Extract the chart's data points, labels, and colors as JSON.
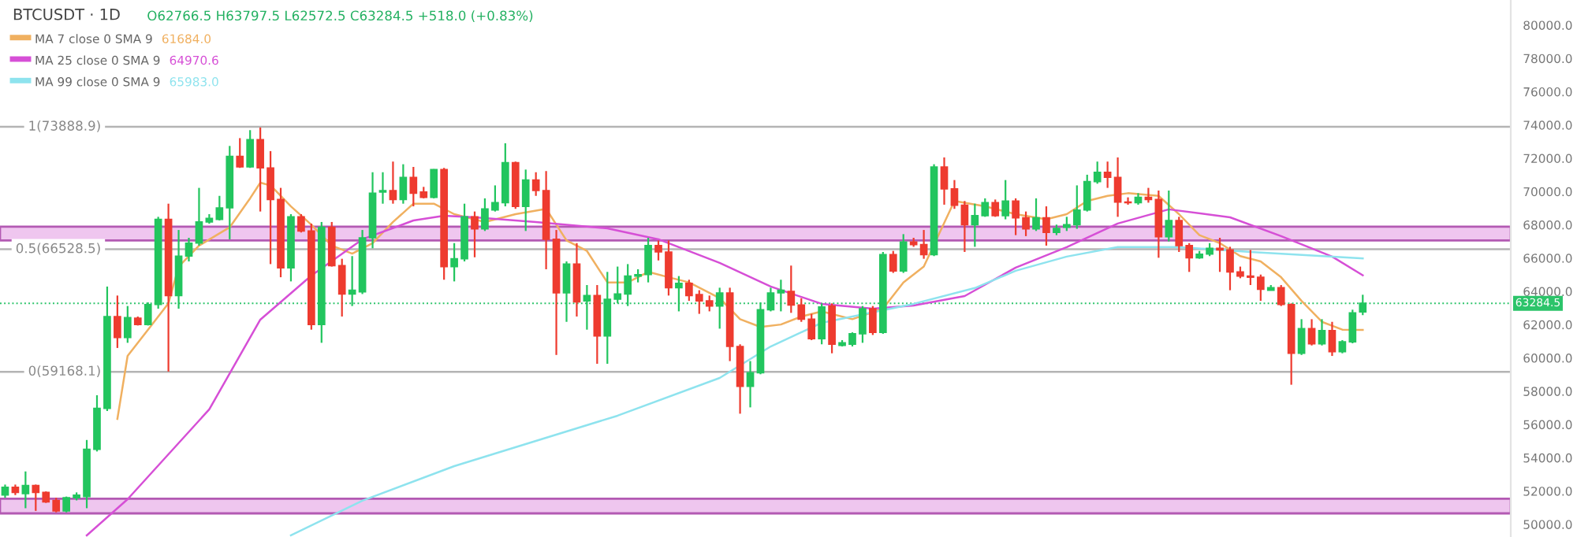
{
  "chart_data": {
    "type": "candlestick",
    "title": "BTCUSDT · 1D",
    "annotations": [
      "O62766.5 H63797.5 L62572.5 C63284.5 +518.0 (+0.83%)",
      "61684.0",
      "64970.6",
      "65983.0"
    ],
    "categories": [
      null,
      null,
      null,
      null,
      null,
      null,
      null,
      null,
      null,
      null,
      null,
      null,
      null,
      null,
      null,
      null,
      null,
      null,
      null,
      null,
      null,
      null,
      null,
      null,
      null,
      null,
      null,
      null,
      null,
      null,
      null,
      null,
      null,
      null,
      null,
      null,
      null,
      null,
      null,
      null,
      null,
      null,
      null,
      null,
      null,
      null,
      null,
      null,
      null,
      null,
      null,
      null,
      null,
      null,
      null,
      null,
      null,
      null,
      null,
      null,
      null,
      null,
      null,
      null,
      null,
      null,
      null,
      null,
      null,
      null,
      null,
      null,
      null,
      null,
      null,
      null,
      null,
      null,
      null,
      null,
      null,
      null,
      null,
      null,
      null,
      null,
      null,
      null,
      null,
      null,
      null,
      null,
      null,
      null,
      null,
      null,
      null,
      null,
      null,
      null,
      null,
      null,
      null,
      null,
      null,
      null,
      null,
      null,
      null,
      null,
      null,
      null,
      null,
      null,
      null,
      null,
      null,
      null,
      null,
      null,
      null,
      null,
      null,
      null,
      null,
      null,
      null,
      null,
      null,
      null,
      null,
      null,
      null,
      null,
      null,
      null,
      null,
      null,
      null,
      null,
      null,
      null,
      null,
      null,
      null,
      null,
      null,
      null
    ],
    "colors": [
      "#22c55e",
      "#ee3b2f",
      "#22c55e",
      "#ee3b2f",
      "#ee3b2f",
      "#ee3b2f",
      "#22c55e",
      "#22c55e",
      "#22c55e",
      "#22c55e",
      "#22c55e",
      "#ee3b2f",
      "#22c55e",
      "#ee3b2f",
      "#22c55e",
      "#22c55e",
      "#ee3b2f",
      "#22c55e",
      "#22c55e",
      "#22c55e",
      "#22c55e",
      "#22c55e",
      "#22c55e",
      "#ee3b2f",
      "#22c55e",
      "#ee3b2f",
      "#ee3b2f",
      "#ee3b2f",
      "#22c55e",
      "#ee3b2f",
      "#ee3b2f",
      "#22c55e",
      "#ee3b2f",
      "#ee3b2f",
      "#22c55e",
      "#22c55e",
      "#22c55e",
      "#22c55e",
      "#ee3b2f",
      "#22c55e",
      "#ee3b2f",
      "#ee3b2f",
      "#22c55e",
      "#ee3b2f",
      "#22c55e",
      "#22c55e",
      "#ee3b2f",
      "#22c55e",
      "#22c55e",
      "#22c55e",
      "#ee3b2f",
      "#22c55e",
      "#ee3b2f",
      "#ee3b2f",
      "#ee3b2f",
      "#22c55e",
      "#ee3b2f",
      "#22c55e",
      "#ee3b2f",
      "#22c55e",
      "#22c55e",
      "#22c55e",
      "#22c55e",
      "#22c55e",
      "#ee3b2f",
      "#ee3b2f",
      "#22c55e",
      "#ee3b2f",
      "#ee3b2f",
      "#ee3b2f",
      "#22c55e",
      "#ee3b2f",
      "#ee3b2f",
      "#22c55e",
      "#22c55e",
      "#22c55e",
      "#22c55e",
      "#ee3b2f",
      "#ee3b2f",
      "#ee3b2f",
      "#22c55e",
      "#ee3b2f",
      "#22c55e",
      "#22c55e",
      "#22c55e",
      "#ee3b2f",
      "#22c55e",
      "#ee3b2f",
      "#22c55e",
      "#ee3b2f",
      "#ee3b2f",
      "#22c55e",
      "#ee3b2f",
      "#ee3b2f",
      "#ee3b2f",
      "#22c55e",
      "#22c55e",
      "#ee3b2f",
      "#22c55e",
      "#ee3b2f",
      "#ee3b2f",
      "#22c55e",
      "#ee3b2f",
      "#22c55e",
      "#22c55e",
      "#22c55e",
      "#22c55e",
      "#22c55e",
      "#ee3b2f",
      "#ee3b2f",
      "#ee3b2f",
      "#22c55e",
      "#ee3b2f",
      "#ee3b2f",
      "#22c55e",
      "#ee3b2f",
      "#ee3b2f",
      "#22c55e",
      "#22c55e",
      "#ee3b2f",
      "#ee3b2f",
      "#ee3b2f",
      "#ee3b2f",
      "#ee3b2f",
      "#22c55e",
      "#ee3b2f",
      "#ee3b2f",
      "#22c55e",
      "#ee3b2f",
      "#22c55e",
      "#ee3b2f",
      "#22c55e",
      "#22c55e",
      "#22c55e",
      null,
      null,
      null,
      null,
      null,
      null,
      null,
      null,
      null,
      null,
      null,
      null,
      null,
      null
    ],
    "ohlc": [
      [
        51760,
        52390,
        51600,
        52230
      ],
      [
        52230,
        52390,
        51760,
        51920
      ],
      [
        51850,
        53180,
        50970,
        52330
      ],
      [
        52330,
        52390,
        50810,
        51920
      ],
      [
        51920,
        51980,
        51290,
        51350
      ],
      [
        51440,
        51600,
        50720,
        50810
      ],
      [
        50810,
        51670,
        50720,
        51600
      ],
      [
        51600,
        51920,
        51440,
        51760
      ],
      [
        51670,
        55070,
        50970,
        54510
      ],
      [
        54510,
        57760,
        54380,
        56970
      ],
      [
        56970,
        64290,
        56810,
        62490
      ],
      [
        62490,
        63750,
        60600,
        61230
      ],
      [
        61230,
        63120,
        60910,
        62430
      ],
      [
        62390,
        62490,
        61950,
        62010
      ],
      [
        62010,
        63340,
        61950,
        63210
      ],
      [
        63210,
        68480,
        62960,
        68330
      ],
      [
        68330,
        69270,
        59180,
        63750
      ],
      [
        63750,
        67690,
        62960,
        66120
      ],
      [
        66120,
        67220,
        65800,
        66900
      ],
      [
        66900,
        70220,
        66750,
        68170
      ],
      [
        68170,
        68640,
        68070,
        68390
      ],
      [
        68330,
        69740,
        68260,
        69020
      ],
      [
        69020,
        72740,
        67130,
        72110
      ],
      [
        72110,
        73210,
        71420,
        71480
      ],
      [
        71480,
        73690,
        71420,
        73120
      ],
      [
        73120,
        73850,
        68800,
        71420
      ],
      [
        71420,
        72430,
        65640,
        69520
      ],
      [
        69520,
        70220,
        64850,
        65420
      ],
      [
        65420,
        68640,
        64600,
        68480
      ],
      [
        68480,
        68640,
        67540,
        67630
      ],
      [
        67630,
        68070,
        61700,
        62010
      ],
      [
        62010,
        68170,
        60910,
        67850
      ],
      [
        67850,
        68170,
        65490,
        65550
      ],
      [
        65550,
        65960,
        62490,
        63840
      ],
      [
        63840,
        66120,
        63120,
        64070
      ],
      [
        63970,
        67690,
        63840,
        67220
      ],
      [
        67220,
        71160,
        66590,
        69900
      ],
      [
        69970,
        71160,
        69270,
        70060
      ],
      [
        70060,
        71800,
        69270,
        69520
      ],
      [
        69520,
        71640,
        69270,
        70850
      ],
      [
        70850,
        71480,
        69110,
        69900
      ],
      [
        69970,
        70280,
        69590,
        69650
      ],
      [
        69650,
        71350,
        69590,
        71320
      ],
      [
        71320,
        71420,
        64700,
        65490
      ],
      [
        65490,
        66900,
        64600,
        65960
      ],
      [
        65960,
        69270,
        65800,
        68480
      ],
      [
        68480,
        68800,
        66050,
        67760
      ],
      [
        67760,
        69590,
        67630,
        68960
      ],
      [
        68890,
        70370,
        68800,
        69330
      ],
      [
        69330,
        72900,
        69110,
        71730
      ],
      [
        71730,
        71800,
        68960,
        69110
      ],
      [
        69110,
        71320,
        67630,
        70690
      ],
      [
        70690,
        71160,
        69740,
        70060
      ],
      [
        70060,
        71230,
        65330,
        67130
      ],
      [
        67130,
        67690,
        60180,
        63910
      ],
      [
        63910,
        65800,
        62170,
        65640
      ],
      [
        65640,
        66900,
        62490,
        63370
      ],
      [
        63430,
        64380,
        61700,
        63750
      ],
      [
        63750,
        64380,
        59650,
        61320
      ],
      [
        61320,
        65170,
        59650,
        63530
      ],
      [
        63530,
        65490,
        63280,
        63840
      ],
      [
        63840,
        65640,
        63120,
        64920
      ],
      [
        64920,
        65330,
        64540,
        65010
      ],
      [
        65010,
        67220,
        64540,
        66750
      ],
      [
        66750,
        67060,
        65860,
        66370
      ],
      [
        66370,
        67060,
        63750,
        64220
      ],
      [
        64220,
        64920,
        62800,
        64480
      ],
      [
        64480,
        64700,
        63430,
        63750
      ],
      [
        63810,
        64070,
        62650,
        63430
      ],
      [
        63430,
        63750,
        62800,
        63120
      ],
      [
        63120,
        64220,
        61760,
        63910
      ],
      [
        63910,
        64220,
        59810,
        60690
      ],
      [
        60690,
        60820,
        56650,
        58290
      ],
      [
        58290,
        59810,
        57030,
        59110
      ],
      [
        59110,
        63340,
        59020,
        62900
      ],
      [
        62900,
        64220,
        62800,
        63910
      ],
      [
        63910,
        64700,
        62800,
        64070
      ],
      [
        64000,
        65550,
        62710,
        63180
      ],
      [
        63180,
        63590,
        62170,
        62330
      ],
      [
        62330,
        62650,
        61070,
        61160
      ],
      [
        61160,
        63280,
        60820,
        63060
      ],
      [
        63120,
        63280,
        60280,
        60820
      ],
      [
        60750,
        61070,
        60690,
        60910
      ],
      [
        60820,
        61540,
        60690,
        61450
      ],
      [
        61450,
        63120,
        60910,
        62960
      ],
      [
        62960,
        63120,
        61380,
        61540
      ],
      [
        61540,
        66370,
        61450,
        66210
      ],
      [
        66210,
        66430,
        65110,
        65230
      ],
      [
        65230,
        67440,
        65110,
        66970
      ],
      [
        66970,
        67220,
        66680,
        66810
      ],
      [
        66810,
        67690,
        65960,
        66210
      ],
      [
        66210,
        71640,
        66120,
        71480
      ],
      [
        71480,
        72050,
        69210,
        70160
      ],
      [
        70160,
        70690,
        68960,
        69180
      ],
      [
        69180,
        69430,
        66370,
        68010
      ],
      [
        68010,
        69270,
        66680,
        68550
      ],
      [
        68550,
        69590,
        68480,
        69330
      ],
      [
        69330,
        69520,
        68480,
        68550
      ],
      [
        68550,
        70690,
        68330,
        69430
      ],
      [
        69430,
        69590,
        67380,
        68420
      ],
      [
        68420,
        68800,
        67320,
        67760
      ],
      [
        67760,
        69590,
        67630,
        68420
      ],
      [
        68420,
        69110,
        66750,
        67540
      ],
      [
        67540,
        68010,
        67380,
        67790
      ],
      [
        67850,
        68480,
        67630,
        68010
      ],
      [
        68010,
        70370,
        67760,
        68890
      ],
      [
        68890,
        71010,
        68800,
        70600
      ],
      [
        70600,
        71800,
        70470,
        71160
      ],
      [
        71160,
        71800,
        70220,
        70850
      ],
      [
        70850,
        72050,
        68480,
        69370
      ],
      [
        69370,
        69650,
        69210,
        69330
      ],
      [
        69330,
        69900,
        69210,
        69650
      ],
      [
        69650,
        70220,
        69330,
        69520
      ],
      [
        69520,
        70060,
        66020,
        67280
      ],
      [
        67280,
        70060,
        67000,
        68260
      ],
      [
        68260,
        68480,
        66370,
        66750
      ],
      [
        66750,
        66900,
        65170,
        66020
      ],
      [
        66020,
        66430,
        65960,
        66240
      ],
      [
        66240,
        66900,
        66120,
        66590
      ],
      [
        66590,
        67220,
        65170,
        66490
      ],
      [
        66490,
        66680,
        64070,
        65170
      ],
      [
        65170,
        65490,
        64790,
        64920
      ],
      [
        64920,
        66490,
        64380,
        64850
      ],
      [
        64850,
        65010,
        63430,
        64130
      ],
      [
        64070,
        64380,
        64070,
        64220
      ],
      [
        64220,
        64380,
        63120,
        63210
      ],
      [
        63210,
        63280,
        58390,
        60280
      ],
      [
        60280,
        62330,
        60180,
        61760
      ],
      [
        61760,
        62330,
        60750,
        60850
      ],
      [
        60850,
        62330,
        60750,
        61640
      ],
      [
        61640,
        62170,
        60120,
        60370
      ],
      [
        60370,
        61070,
        60280,
        60970
      ],
      [
        60970,
        62900,
        60880,
        62710
      ],
      [
        62766.5,
        63797.5,
        62572.5,
        63284.5
      ],
      null,
      null,
      null,
      null,
      null,
      null,
      null,
      null,
      null,
      null,
      null,
      null,
      null,
      null
    ],
    "series": [
      {
        "type": "line",
        "name": "MA 7 close 0 SMA 9",
        "color": "#f0b060",
        "values": [
          null,
          null,
          null,
          null,
          null,
          null,
          null,
          null,
          null,
          null,
          null,
          56340,
          60120,
          null,
          61700,
          null,
          63280,
          65490,
          null,
          66750,
          null,
          null,
          67850,
          null,
          69590,
          70530,
          70370,
          null,
          69110,
          null,
          68010,
          null,
          66750,
          null,
          66270,
          null,
          66900,
          null,
          68170,
          null,
          69270,
          null,
          69270,
          null,
          68640,
          null,
          null,
          68170,
          null,
          null,
          68640,
          null,
          null,
          68960,
          null,
          67060,
          null,
          66430,
          null,
          64540,
          null,
          64540,
          null,
          65170,
          null,
          64850,
          null,
          64540,
          null,
          null,
          63590,
          null,
          62330,
          null,
          61860,
          null,
          62010,
          null,
          62490,
          null,
          62800,
          null,
          null,
          62330,
          null,
          null,
          62960,
          null,
          64540,
          null,
          65490,
          null,
          null,
          69430,
          null,
          null,
          69110,
          null,
          null,
          68640,
          null,
          null,
          68330,
          null,
          68640,
          null,
          69430,
          null,
          69740,
          null,
          69900,
          null,
          null,
          69740,
          null,
          68640,
          null,
          67380,
          null,
          66900,
          null,
          66120,
          null,
          65800,
          null,
          64850,
          null,
          63430,
          null,
          62170,
          null,
          61700,
          null,
          61684,
          null,
          null,
          null,
          null,
          null,
          null,
          null,
          null,
          null,
          null,
          null,
          null,
          null,
          null
        ]
      },
      {
        "type": "line",
        "name": "MA 25 close 0 SMA 9",
        "color": "#d64fd6",
        "values": [
          null,
          null,
          null,
          null,
          null,
          null,
          null,
          null,
          49340,
          null,
          null,
          null,
          51510,
          null,
          null,
          null,
          null,
          null,
          null,
          null,
          56910,
          null,
          null,
          null,
          null,
          62300,
          null,
          null,
          null,
          null,
          64950,
          null,
          null,
          null,
          null,
          67130,
          null,
          null,
          null,
          null,
          68260,
          null,
          null,
          68550,
          null,
          null,
          68450,
          null,
          null,
          null,
          null,
          null,
          68170,
          null,
          null,
          null,
          null,
          null,
          null,
          67790,
          null,
          null,
          null,
          null,
          67130,
          null,
          null,
          null,
          null,
          null,
          65710,
          null,
          null,
          null,
          null,
          64290,
          null,
          null,
          null,
          null,
          63250,
          null,
          null,
          null,
          null,
          62960,
          null,
          null,
          null,
          63150,
          null,
          null,
          null,
          null,
          63720,
          null,
          null,
          null,
          null,
          65430,
          null,
          null,
          null,
          null,
          66660,
          null,
          null,
          null,
          null,
          68080,
          null,
          null,
          null,
          null,
          68930,
          null,
          null,
          null,
          null,
          null,
          68450,
          null,
          null,
          null,
          null,
          67320,
          null,
          null,
          null,
          null,
          66090,
          null,
          null,
          64970.6,
          null,
          null,
          null,
          null,
          null,
          null,
          null,
          null,
          null,
          null,
          null,
          null,
          null,
          null
        ]
      },
      {
        "type": "line",
        "name": "MA 99 close 0 SMA 9",
        "color": "#8ee3ee",
        "values": [
          null,
          null,
          null,
          null,
          null,
          null,
          null,
          null,
          null,
          null,
          null,
          null,
          null,
          null,
          null,
          null,
          null,
          null,
          null,
          null,
          null,
          null,
          null,
          null,
          null,
          null,
          null,
          null,
          49340,
          null,
          null,
          null,
          null,
          null,
          null,
          51420,
          null,
          null,
          null,
          null,
          null,
          null,
          null,
          null,
          53500,
          null,
          null,
          null,
          null,
          null,
          null,
          null,
          null,
          null,
          null,
          null,
          null,
          null,
          null,
          null,
          56530,
          null,
          null,
          null,
          null,
          null,
          null,
          null,
          null,
          null,
          58800,
          null,
          null,
          null,
          null,
          60690,
          null,
          null,
          null,
          null,
          62110,
          null,
          null,
          null,
          null,
          null,
          null,
          null,
          null,
          63250,
          null,
          null,
          null,
          null,
          null,
          64200,
          null,
          null,
          null,
          65240,
          null,
          null,
          null,
          null,
          66090,
          null,
          null,
          null,
          null,
          66660,
          null,
          null,
          null,
          null,
          null,
          66660,
          null,
          null,
          null,
          null,
          null,
          null,
          66370,
          null,
          null,
          null,
          null,
          null,
          null,
          null,
          null,
          null,
          null,
          65983,
          null,
          null,
          null,
          null,
          null,
          null,
          null,
          null,
          null,
          null,
          null,
          null,
          null,
          null
        ]
      }
    ],
    "ylim": [
      49240,
      81510
    ],
    "yticks": [
      {
        "value": 50000,
        "label": "50000.0"
      },
      {
        "value": 52000,
        "label": "52000.0"
      },
      {
        "value": 54000,
        "label": "54000.0"
      },
      {
        "value": 56000,
        "label": "56000.0"
      },
      {
        "value": 58000,
        "label": "58000.0"
      },
      {
        "value": 60000,
        "label": "60000.0"
      },
      {
        "value": 62000,
        "label": "62000.0"
      },
      {
        "value": 64000,
        "label": "64000.0"
      },
      {
        "value": 66000,
        "label": "66000.0"
      },
      {
        "value": 68000,
        "label": "68000.0"
      },
      {
        "value": 70000,
        "label": "70000.0"
      },
      {
        "value": 72000,
        "label": "72000.0"
      },
      {
        "value": 74000,
        "label": "74000.0"
      },
      {
        "value": 76000,
        "label": "76000.0"
      },
      {
        "value": 78000,
        "label": "78000.0"
      },
      {
        "value": 80000,
        "label": "80000.0"
      }
    ],
    "ref_lines": [
      {
        "axis": "y",
        "value": 73888.9,
        "label": "1(73888.9)",
        "color": "#b4b4b4",
        "line_style": "solid"
      },
      {
        "axis": "y",
        "value": 66528.5,
        "label": "0.5(66528.5)",
        "color": "#b4b4b4",
        "line_style": "solid"
      },
      {
        "axis": "y",
        "value": 59168.1,
        "label": "0(59168.1)",
        "color": "#b4b4b4",
        "line_style": "solid"
      },
      {
        "axis": "y",
        "value": 63284.5,
        "label": "63284.5",
        "color": "#2cc46a",
        "line_style": "dotted"
      }
    ],
    "bands": [
      {
        "axis": "y",
        "from": 67060,
        "to": 67890,
        "color": "#efc6ef"
      },
      {
        "axis": "y",
        "from": 50660,
        "to": 51540,
        "color": "#efc6ef"
      }
    ],
    "tick_labels": "y",
    "grid": false,
    "legend": "top left"
  }
}
